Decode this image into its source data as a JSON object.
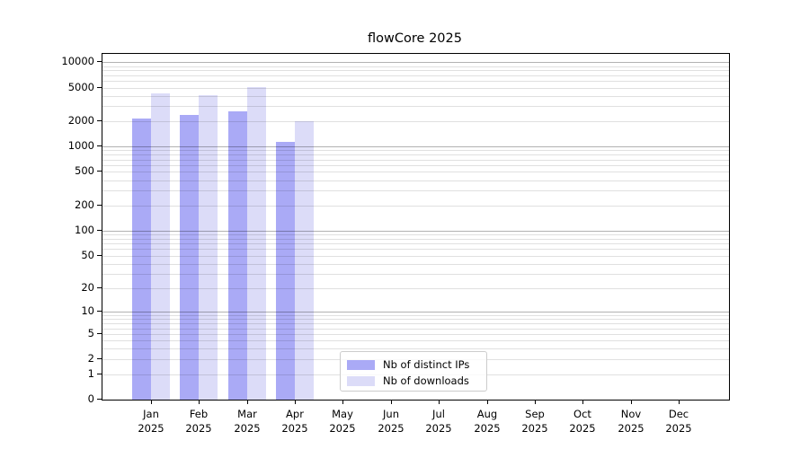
{
  "title": "flowCore 2025",
  "legend": {
    "items": [
      {
        "label": "Nb of distinct IPs",
        "color": "#aaaaf6"
      },
      {
        "label": "Nb of downloads",
        "color": "#dcdcf8"
      }
    ]
  },
  "colors": {
    "bar_distinct_ips": "#aaaaf6",
    "bar_downloads": "#dcdcf8",
    "grid_major": "rgba(0,0,0,0.30)",
    "grid_minor": "rgba(0,0,0,0.12)",
    "axis_line": "#000000",
    "legend_border": "#cccccc",
    "legend_background": "rgba(255,255,255,0.8)"
  },
  "chart_data": {
    "type": "bar",
    "title": "flowCore 2025",
    "xlabel": "",
    "ylabel": "",
    "y_scale": "log1p",
    "ylim": [
      0,
      12560
    ],
    "grid": "on",
    "legend_position": "lower-center-inside",
    "months": [
      "Jan",
      "Feb",
      "Mar",
      "Apr",
      "May",
      "Jun",
      "Jul",
      "Aug",
      "Sep",
      "Oct",
      "Nov",
      "Dec"
    ],
    "year": "2025",
    "categories": [
      "Jan 2025",
      "Feb 2025",
      "Mar 2025",
      "Apr 2025",
      "May 2025",
      "Jun 2025",
      "Jul 2025",
      "Aug 2025",
      "Sep 2025",
      "Oct 2025",
      "Nov 2025",
      "Dec 2025"
    ],
    "series": [
      {
        "name": "Nb of distinct IPs",
        "color": "#aaaaf6",
        "values": [
          2150,
          2350,
          2620,
          1150,
          null,
          null,
          null,
          null,
          null,
          null,
          null,
          null
        ]
      },
      {
        "name": "Nb of downloads",
        "color": "#dcdcf8",
        "values": [
          4300,
          4050,
          5100,
          1980,
          null,
          null,
          null,
          null,
          null,
          null,
          null,
          null
        ]
      }
    ],
    "y_tick_labels": [
      0,
      1,
      2,
      5,
      10,
      20,
      50,
      100,
      200,
      500,
      1000,
      2000,
      5000,
      10000
    ],
    "grid_major_values": [
      10,
      100,
      1000,
      10000
    ],
    "grid_minor_values": [
      1,
      2,
      3,
      4,
      5,
      6,
      7,
      8,
      9,
      20,
      30,
      40,
      50,
      60,
      70,
      80,
      90,
      200,
      300,
      400,
      500,
      600,
      700,
      800,
      900,
      2000,
      3000,
      4000,
      5000,
      6000,
      7000,
      8000,
      9000
    ]
  }
}
